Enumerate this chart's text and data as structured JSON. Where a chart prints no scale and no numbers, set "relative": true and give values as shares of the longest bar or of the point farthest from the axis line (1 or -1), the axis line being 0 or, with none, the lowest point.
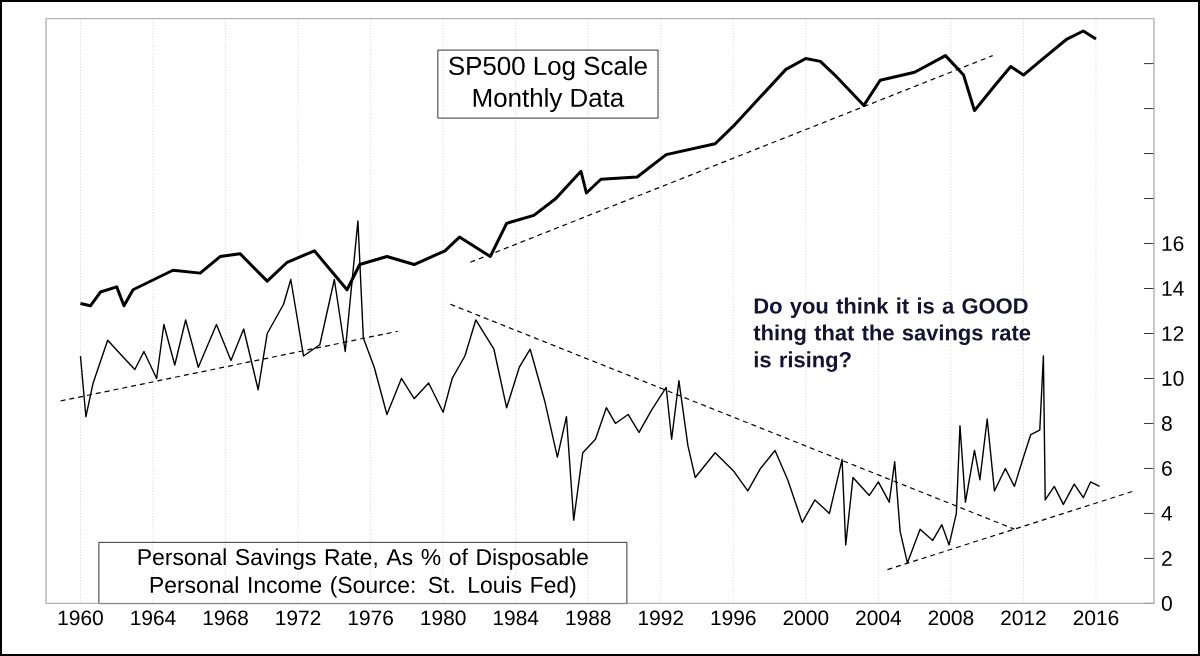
{
  "chart_data": [
    {
      "type": "line",
      "title": "SP500 Log Scale",
      "subtitle": "Monthly Data",
      "relative": true,
      "xlim": [
        1958.1,
        2019.2
      ],
      "tick_labels": false,
      "xticks": [
        1960,
        1964,
        1968,
        1972,
        1976,
        1980,
        1984,
        1988,
        1992,
        1996,
        2000,
        2004,
        2008,
        2012,
        2016
      ],
      "series": [
        {
          "color": "#000000",
          "x": [
            1960.0,
            1960.55,
            1961.1,
            1962.0,
            1962.4,
            1962.9,
            1965.1,
            1966.6,
            1967.7,
            1968.8,
            1970.3,
            1971.4,
            1972.9,
            1974.7,
            1975.4,
            1976.9,
            1978.4,
            1980.1,
            1980.9,
            1982.6,
            1983.5,
            1985.0,
            1986.2,
            1987.6,
            1987.9,
            1988.7,
            1990.7,
            1992.3,
            1995.0,
            1996.1,
            1997.5,
            1998.9,
            2000.0,
            2000.8,
            2001.6,
            2003.2,
            2004.1,
            2006.0,
            2007.7,
            2008.7,
            2009.3,
            2010.4,
            2011.3,
            2012.0,
            2012.9,
            2014.4,
            2015.3,
            2016.0
          ],
          "values": [
            0.524,
            0.52,
            0.544,
            0.553,
            0.52,
            0.548,
            0.582,
            0.577,
            0.606,
            0.611,
            0.563,
            0.596,
            0.616,
            0.548,
            0.592,
            0.606,
            0.592,
            0.616,
            0.64,
            0.606,
            0.664,
            0.678,
            0.707,
            0.755,
            0.717,
            0.741,
            0.745,
            0.784,
            0.803,
            0.837,
            0.885,
            0.933,
            0.952,
            0.947,
            0.923,
            0.87,
            0.914,
            0.928,
            0.957,
            0.923,
            0.861,
            0.904,
            0.938,
            0.923,
            0.947,
            0.986,
            1.0,
            0.986
          ]
        },
        {
          "type": "line",
          "line_style": "dashed",
          "color": "#000000",
          "x": [
            1981.5,
            2010.3
          ],
          "values": [
            0.596,
            0.957
          ]
        }
      ]
    },
    {
      "type": "line",
      "title": "Personal Savings Rate, As % of Disposable Personal Income (Source: St. Louis Fed)",
      "annotations": [
        "Do you think it is a GOOD thing that the savings rate is rising?"
      ],
      "xlim": [
        1958.1,
        2019.2
      ],
      "ylim": [
        0,
        26
      ],
      "grid": "x",
      "xticks": [
        1960,
        1964,
        1968,
        1972,
        1976,
        1980,
        1984,
        1988,
        1992,
        1996,
        2000,
        2004,
        2008,
        2012,
        2016
      ],
      "yticks": [
        0,
        2,
        4,
        6,
        8,
        10,
        12,
        14,
        16,
        {
          "value": 18,
          "label": null
        },
        {
          "value": 20,
          "label": null
        },
        {
          "value": 22,
          "label": null
        },
        {
          "value": 24,
          "label": null
        }
      ],
      "series": [
        {
          "color": "#000000",
          "x": [
            1960.0,
            1960.3,
            1960.7,
            1961.5,
            1962.3,
            1963.0,
            1963.5,
            1964.2,
            1964.6,
            1965.2,
            1965.8,
            1966.5,
            1967.5,
            1968.3,
            1969.0,
            1969.8,
            1970.3,
            1971.2,
            1971.6,
            1972.3,
            1973.2,
            1974.0,
            1974.6,
            1975.3,
            1975.6,
            1976.2,
            1976.9,
            1977.7,
            1978.4,
            1979.2,
            1980.0,
            1980.5,
            1981.2,
            1981.8,
            1982.8,
            1983.5,
            1984.2,
            1984.8,
            1985.6,
            1986.3,
            1986.8,
            1987.2,
            1987.7,
            1988.4,
            1989.0,
            1989.5,
            1990.2,
            1990.8,
            1991.5,
            1992.3,
            1992.6,
            1993.0,
            1993.5,
            1993.9,
            1995.0,
            1996.0,
            1996.8,
            1997.5,
            1998.3,
            1999.0,
            1999.8,
            2000.5,
            2001.3,
            2002.0,
            2002.2,
            2002.6,
            2003.5,
            2004.0,
            2004.6,
            2004.9,
            2005.2,
            2005.6,
            2006.3,
            2007.0,
            2007.5,
            2007.9,
            2008.3,
            2008.5,
            2008.8,
            2009.3,
            2009.6,
            2010.0,
            2010.4,
            2011.0,
            2011.5,
            2012.0,
            2012.4,
            2012.9,
            2013.1,
            2013.2,
            2013.7,
            2014.2,
            2014.8,
            2015.3,
            2015.7,
            2016.2
          ],
          "values": [
            11.0,
            8.3,
            9.8,
            11.7,
            11.0,
            10.4,
            11.2,
            10.0,
            12.4,
            10.6,
            12.6,
            10.5,
            12.4,
            10.8,
            12.2,
            9.5,
            12.0,
            13.3,
            14.4,
            11.0,
            11.5,
            14.4,
            11.2,
            17.0,
            11.8,
            10.5,
            8.4,
            10.0,
            9.1,
            9.8,
            8.5,
            10.0,
            11.0,
            12.6,
            11.3,
            8.7,
            10.5,
            11.3,
            9.0,
            6.5,
            8.3,
            3.7,
            6.7,
            7.3,
            8.7,
            8.0,
            8.4,
            7.6,
            8.6,
            9.6,
            7.3,
            9.9,
            7.0,
            5.6,
            6.7,
            5.9,
            5.0,
            6.0,
            6.8,
            5.5,
            3.6,
            4.6,
            4.0,
            6.4,
            2.6,
            5.6,
            4.8,
            5.4,
            4.5,
            6.3,
            3.2,
            1.8,
            3.3,
            2.8,
            3.5,
            2.6,
            4.0,
            7.9,
            4.5,
            6.8,
            5.5,
            8.2,
            5.0,
            6.0,
            5.2,
            6.5,
            7.5,
            7.7,
            11.0,
            4.6,
            5.2,
            4.4,
            5.3,
            4.7,
            5.4,
            5.2
          ]
        },
        {
          "type": "line",
          "line_style": "dashed",
          "color": "#000000",
          "x": [
            1958.9,
            1977.5
          ],
          "values": [
            9.0,
            12.1
          ]
        },
        {
          "type": "line",
          "line_style": "dashed",
          "color": "#000000",
          "x": [
            1980.4,
            2011.5
          ],
          "values": [
            13.3,
            3.3
          ]
        },
        {
          "type": "line",
          "line_style": "dashed",
          "color": "#000000",
          "x": [
            2004.5,
            2018.1
          ],
          "values": [
            1.5,
            5.0
          ]
        }
      ]
    }
  ]
}
